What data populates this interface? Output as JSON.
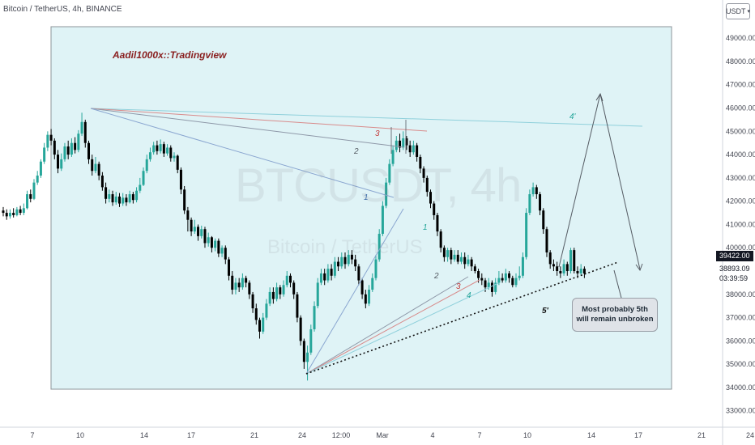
{
  "header": {
    "title": "Bitcoin / TetherUS, 4h, BINANCE",
    "currency": "USDT",
    "currency_dropdown_icon": "chevron-down-icon"
  },
  "watermark": {
    "symbol": "BTCUSDT, 4h",
    "name": "Bitcoin / TetherUS"
  },
  "colors": {
    "up": "#26a69a",
    "down": "#000000",
    "box_fill": "#dff3f6",
    "box_stroke": "#8c9599",
    "author": "#8a2020",
    "wave_grey": "#555b63",
    "wave_red": "#c43a3a",
    "wave_teal": "#26a69a",
    "price_tag_bg": "#131722"
  },
  "author_label": "Aadil1000x::Tradingview",
  "price_axis": {
    "labels": [
      "49000.00",
      "48000.00",
      "47000.00",
      "46000.00",
      "45000.00",
      "44000.00",
      "43000.00",
      "42000.00",
      "41000.00",
      "40000.00",
      "38000.00",
      "37000.00",
      "36000.00",
      "35000.00",
      "34000.00",
      "33000.00"
    ],
    "top_label": "5",
    "current_price": "39422.00",
    "last_close": "38893.09",
    "countdown": "03:39:59"
  },
  "time_axis": {
    "labels": [
      "7",
      "10",
      "14",
      "17",
      "21",
      "24",
      "12:00",
      "Mar",
      "4",
      "7",
      "10",
      "14",
      "17",
      "21",
      "24"
    ]
  },
  "waves": {
    "top_group": [
      "1",
      "2",
      "3"
    ],
    "mid_1": "1",
    "bottom_group": [
      "2",
      "3",
      "4"
    ],
    "w4": "4'",
    "w5": "5'"
  },
  "note": {
    "line1": "Most probably 5th",
    "line2": "will remain unbroken"
  },
  "chart_data": {
    "type": "candlestick",
    "title": "Bitcoin / TetherUS, 4h, BINANCE",
    "ylim": [
      32400,
      50500
    ],
    "x_range_label": [
      "7",
      "10",
      "14",
      "17",
      "21",
      "24",
      "12:00",
      "Mar",
      "4",
      "7",
      "10",
      "14",
      "17",
      "21",
      "24"
    ],
    "grid": false,
    "candles": [
      [
        41600,
        41500,
        41750,
        41350
      ],
      [
        41500,
        41350,
        41650,
        41200
      ],
      [
        41350,
        41500,
        41650,
        41250
      ],
      [
        41500,
        41400,
        41700,
        41300
      ],
      [
        41400,
        41650,
        41750,
        41350
      ],
      [
        41650,
        41500,
        41800,
        41400
      ],
      [
        41500,
        41700,
        41900,
        41400
      ],
      [
        41700,
        42300,
        42450,
        41650
      ],
      [
        42300,
        42100,
        42500,
        41950
      ],
      [
        42100,
        42800,
        42950,
        42050
      ],
      [
        42800,
        43100,
        43300,
        42700
      ],
      [
        43100,
        43700,
        43800,
        43000
      ],
      [
        43700,
        44300,
        44500,
        43600
      ],
      [
        44300,
        44850,
        45000,
        44150
      ],
      [
        44850,
        44600,
        45100,
        44400
      ],
      [
        44600,
        44000,
        44700,
        43800
      ],
      [
        44000,
        43400,
        44200,
        43200
      ],
      [
        43400,
        43800,
        44050,
        43300
      ],
      [
        43800,
        44350,
        44500,
        43700
      ],
      [
        44350,
        44000,
        44600,
        43800
      ],
      [
        44000,
        44500,
        44700,
        43900
      ],
      [
        44500,
        44200,
        44750,
        44050
      ],
      [
        44200,
        44900,
        45050,
        44100
      ],
      [
        44900,
        45400,
        45800,
        44800
      ],
      [
        45400,
        44500,
        45500,
        44300
      ],
      [
        44500,
        43800,
        44600,
        43600
      ],
      [
        43800,
        43300,
        44000,
        43100
      ],
      [
        43300,
        43600,
        43900,
        43200
      ],
      [
        43600,
        43100,
        43700,
        42900
      ],
      [
        43100,
        42600,
        43250,
        42450
      ],
      [
        42600,
        42100,
        42800,
        41900
      ],
      [
        42100,
        42300,
        42500,
        41950
      ],
      [
        42300,
        41950,
        42450,
        41800
      ],
      [
        41950,
        42200,
        42400,
        41850
      ],
      [
        42200,
        41900,
        42350,
        41750
      ],
      [
        41900,
        42150,
        42350,
        41800
      ],
      [
        42150,
        41950,
        42300,
        41800
      ],
      [
        41950,
        42300,
        42450,
        41900
      ],
      [
        42300,
        42050,
        42400,
        41900
      ],
      [
        42050,
        42450,
        42600,
        41950
      ],
      [
        42450,
        42700,
        43000,
        42350
      ],
      [
        42700,
        43300,
        43450,
        42650
      ],
      [
        43300,
        43800,
        44000,
        43200
      ],
      [
        43800,
        44100,
        44300,
        43700
      ],
      [
        44100,
        44400,
        44550,
        44000
      ],
      [
        44400,
        44150,
        44600,
        44000
      ],
      [
        44150,
        44450,
        44650,
        44050
      ],
      [
        44450,
        44050,
        44550,
        43900
      ],
      [
        44050,
        44300,
        44450,
        43950
      ],
      [
        44300,
        43850,
        44400,
        43700
      ],
      [
        43850,
        43950,
        44100,
        43700
      ],
      [
        43950,
        43350,
        44000,
        43200
      ],
      [
        43350,
        42500,
        43450,
        42300
      ],
      [
        42500,
        41600,
        42650,
        41450
      ],
      [
        41600,
        41200,
        41750,
        40700
      ],
      [
        41200,
        40700,
        41300,
        40500
      ],
      [
        40700,
        40900,
        41200,
        40600
      ],
      [
        40900,
        40500,
        41000,
        40300
      ],
      [
        40500,
        40800,
        40950,
        40400
      ],
      [
        40800,
        40200,
        40900,
        40000
      ],
      [
        40200,
        40450,
        40650,
        40050
      ],
      [
        40450,
        40000,
        40500,
        39800
      ],
      [
        40000,
        40300,
        40400,
        39850
      ],
      [
        40300,
        39750,
        40400,
        39600
      ],
      [
        39750,
        40000,
        40100,
        39600
      ],
      [
        40000,
        39500,
        40100,
        39300
      ],
      [
        39500,
        38800,
        39600,
        38600
      ],
      [
        38800,
        38200,
        39000,
        38000
      ],
      [
        38200,
        38500,
        38700,
        38000
      ],
      [
        38500,
        38300,
        38700,
        38100
      ],
      [
        38300,
        38700,
        38900,
        38200
      ],
      [
        38700,
        38500,
        38800,
        38300
      ],
      [
        38500,
        38000,
        38600,
        37800
      ],
      [
        38000,
        37400,
        38100,
        37200
      ],
      [
        37400,
        36900,
        37600,
        36700
      ],
      [
        36900,
        36400,
        37000,
        36100
      ],
      [
        36400,
        37000,
        37200,
        36300
      ],
      [
        37000,
        37600,
        37800,
        36900
      ],
      [
        37600,
        38100,
        38300,
        37500
      ],
      [
        38100,
        37800,
        38300,
        37600
      ],
      [
        37800,
        38300,
        38500,
        37700
      ],
      [
        38300,
        38000,
        38400,
        37800
      ],
      [
        38000,
        38400,
        38600,
        37900
      ],
      [
        38400,
        38800,
        39000,
        38300
      ],
      [
        38800,
        38500,
        38900,
        38300
      ],
      [
        38500,
        38000,
        38600,
        37800
      ],
      [
        38000,
        37000,
        38100,
        36800
      ],
      [
        37000,
        36000,
        37100,
        35800
      ],
      [
        36000,
        35100,
        36100,
        34800
      ],
      [
        35100,
        35500,
        35800,
        34300
      ],
      [
        35500,
        36500,
        36700,
        35400
      ],
      [
        36500,
        37500,
        37700,
        36400
      ],
      [
        37500,
        38500,
        38700,
        37400
      ],
      [
        38500,
        38900,
        39100,
        38400
      ],
      [
        38900,
        38600,
        39100,
        38400
      ],
      [
        38600,
        39100,
        39300,
        38500
      ],
      [
        39100,
        38800,
        39300,
        38600
      ],
      [
        38800,
        39400,
        39600,
        38700
      ],
      [
        39400,
        39200,
        39600,
        39000
      ],
      [
        39200,
        39600,
        39800,
        39100
      ],
      [
        39600,
        39300,
        39800,
        39100
      ],
      [
        39300,
        39700,
        39900,
        39200
      ],
      [
        39700,
        39500,
        39900,
        39300
      ],
      [
        39500,
        39200,
        39700,
        39000
      ],
      [
        39200,
        38600,
        39300,
        38400
      ],
      [
        38600,
        38000,
        38700,
        37800
      ],
      [
        38000,
        37600,
        38200,
        37400
      ],
      [
        37600,
        38200,
        38400,
        37500
      ],
      [
        38200,
        38700,
        38900,
        38100
      ],
      [
        38700,
        39500,
        39700,
        38600
      ],
      [
        39500,
        40600,
        40800,
        39400
      ],
      [
        40600,
        41800,
        42000,
        40500
      ],
      [
        41800,
        42800,
        43000,
        41700
      ],
      [
        42800,
        43600,
        43800,
        42700
      ],
      [
        43600,
        44200,
        44400,
        43500
      ],
      [
        44200,
        44600,
        44800,
        44100
      ],
      [
        44600,
        44300,
        44900,
        44100
      ],
      [
        44300,
        44700,
        45000,
        44200
      ],
      [
        44700,
        44400,
        44800,
        44200
      ],
      [
        44400,
        44100,
        44600,
        43900
      ],
      [
        44100,
        44400,
        44600,
        44000
      ],
      [
        44400,
        43900,
        44500,
        43700
      ],
      [
        43900,
        43400,
        44000,
        43200
      ],
      [
        43400,
        43000,
        43500,
        42800
      ],
      [
        43000,
        42400,
        43100,
        42200
      ],
      [
        42400,
        41900,
        42500,
        41700
      ],
      [
        41900,
        41400,
        42000,
        41200
      ],
      [
        41400,
        40700,
        41500,
        40500
      ],
      [
        40700,
        40000,
        40800,
        39800
      ],
      [
        40000,
        39600,
        40100,
        39400
      ],
      [
        39600,
        39900,
        40000,
        39400
      ],
      [
        39900,
        39500,
        40000,
        39300
      ],
      [
        39500,
        39700,
        39900,
        39400
      ],
      [
        39700,
        39400,
        39900,
        39300
      ],
      [
        39400,
        39600,
        39800,
        39300
      ],
      [
        39600,
        39300,
        39800,
        39100
      ],
      [
        39300,
        39500,
        39700,
        39200
      ],
      [
        39500,
        39200,
        39600,
        39000
      ],
      [
        39200,
        39000,
        39300,
        38900
      ],
      [
        39000,
        38700,
        39100,
        38500
      ],
      [
        38700,
        38600,
        38900,
        38400
      ],
      [
        38600,
        38300,
        38700,
        38100
      ],
      [
        38300,
        38500,
        38700,
        38200
      ],
      [
        38500,
        38100,
        38600,
        37900
      ],
      [
        38100,
        38500,
        38700,
        38000
      ],
      [
        38500,
        38700,
        39000,
        38400
      ],
      [
        38700,
        38600,
        38900,
        38500
      ],
      [
        38600,
        38900,
        39100,
        38500
      ],
      [
        38900,
        38700,
        39000,
        38500
      ],
      [
        38700,
        38400,
        38800,
        38300
      ],
      [
        38400,
        38700,
        38900,
        38300
      ],
      [
        38700,
        38800,
        39200,
        38600
      ],
      [
        38800,
        39600,
        39800,
        38700
      ],
      [
        39600,
        41500,
        41700,
        39500
      ],
      [
        41500,
        42300,
        42500,
        41400
      ],
      [
        42300,
        42600,
        42800,
        42200
      ],
      [
        42600,
        42300,
        42700,
        42100
      ],
      [
        42300,
        41600,
        42400,
        41400
      ],
      [
        41600,
        40800,
        41700,
        40600
      ],
      [
        40800,
        39800,
        40900,
        39600
      ],
      [
        39800,
        39300,
        39900,
        39100
      ],
      [
        39300,
        39200,
        39500,
        39000
      ],
      [
        39200,
        39000,
        39400,
        38800
      ],
      [
        39000,
        38900,
        39200,
        38700
      ],
      [
        38900,
        39300,
        39500,
        38800
      ],
      [
        39300,
        39000,
        39400,
        38800
      ],
      [
        39000,
        39900,
        40000,
        38900
      ],
      [
        39900,
        39000,
        40000,
        38900
      ],
      [
        39000,
        38900,
        39200,
        38700
      ],
      [
        38900,
        39100,
        39300,
        38800
      ],
      [
        39100,
        38893,
        39200,
        38700
      ]
    ]
  }
}
